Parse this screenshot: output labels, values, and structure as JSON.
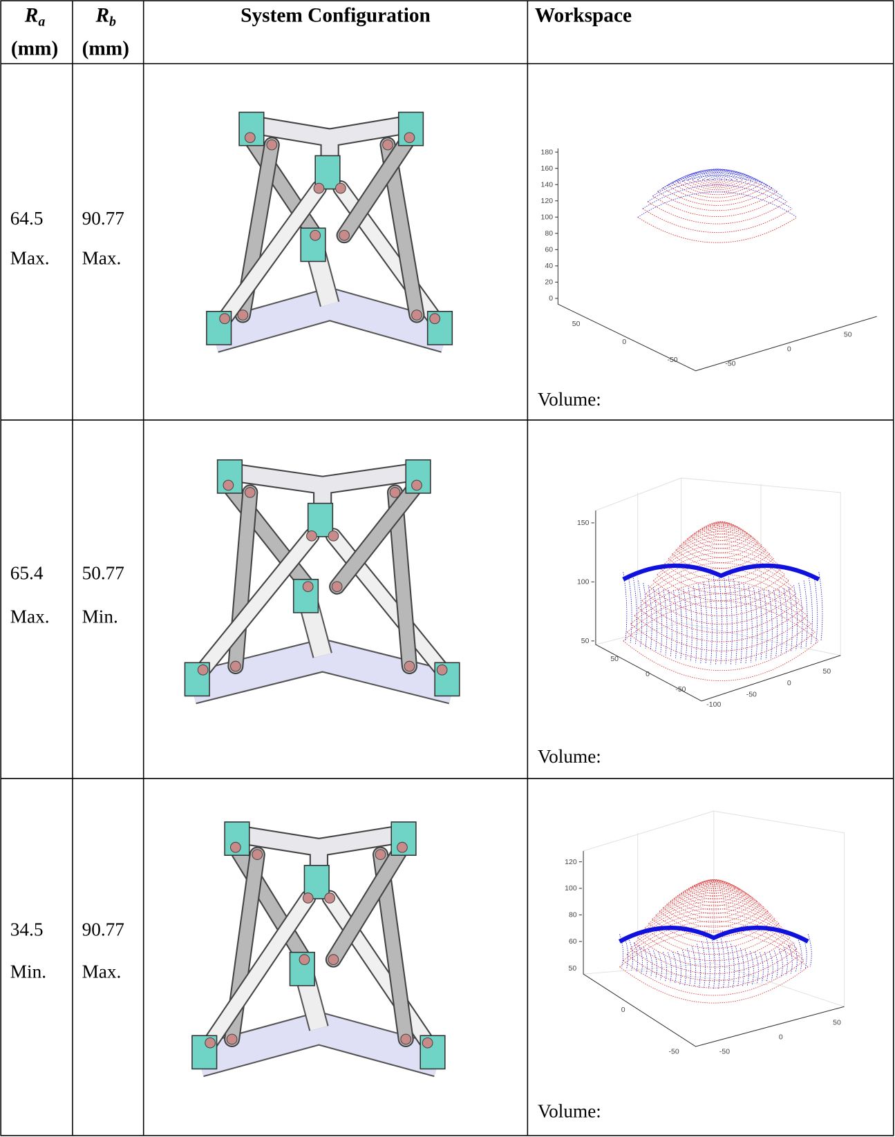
{
  "table": {
    "header": [
      {
        "symbol": "R",
        "subscript": "a",
        "unit": "(mm)"
      },
      {
        "symbol": "R",
        "subscript": "b",
        "unit": "(mm)"
      },
      "System Configuration",
      "Workspace"
    ],
    "rows": [
      {
        "ra": "64.5",
        "ra_note": "Max.",
        "rb": "90.77",
        "rb_note": "Max.",
        "volume_label": "Volume:",
        "plot": {
          "zticks": [
            0,
            20,
            40,
            60,
            80,
            100,
            120,
            140,
            160,
            180
          ],
          "xticks": [
            50,
            0,
            -50
          ],
          "yticks": [
            -50,
            0,
            50
          ]
        }
      },
      {
        "ra": "65.4",
        "ra_note": "Max.",
        "rb": "50.77",
        "rb_note": "Min.",
        "volume_label": "Volume:",
        "plot": {
          "zticks": [
            50,
            100,
            150
          ],
          "xticks": [
            50,
            0,
            -50,
            -100
          ],
          "yticks": [
            -50,
            0,
            50
          ]
        }
      },
      {
        "ra": "34.5",
        "ra_note": "Min.",
        "rb": "90.77",
        "rb_note": "Max.",
        "volume_label": "Volume:",
        "plot": {
          "zticks": [
            60,
            80,
            100,
            120
          ],
          "xticks": [
            50,
            0,
            -50
          ],
          "yticks": [
            -50,
            0,
            50
          ]
        }
      }
    ]
  }
}
